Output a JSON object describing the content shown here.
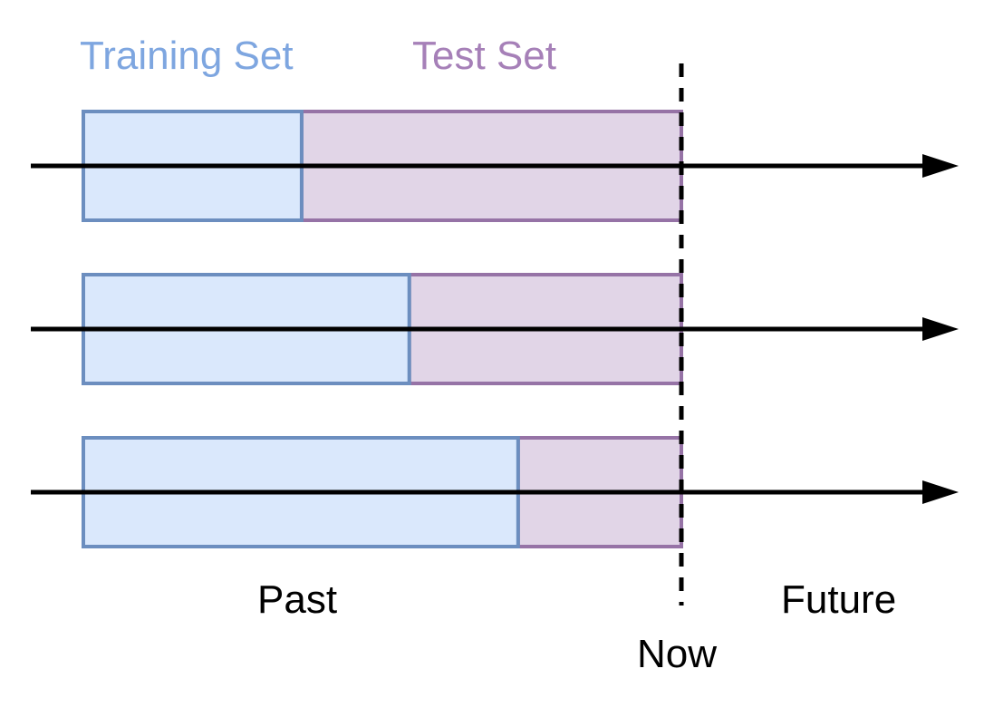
{
  "legend": {
    "training_label": "Training Set",
    "test_label": "Test Set"
  },
  "timeline": {
    "past_label": "Past",
    "future_label": "Future",
    "now_label": "Now"
  },
  "splits": [
    {
      "training_fraction": 0.365
    },
    {
      "training_fraction": 0.545
    },
    {
      "training_fraction": 0.727
    }
  ],
  "colors": {
    "training_fill": "#dae8fc",
    "training_stroke": "#6c8ebf",
    "test_fill": "#e1d5e7",
    "test_stroke": "#9673a6",
    "axis": "#000000",
    "training_text": "#7ea6e0",
    "test_text": "#a680b8"
  }
}
